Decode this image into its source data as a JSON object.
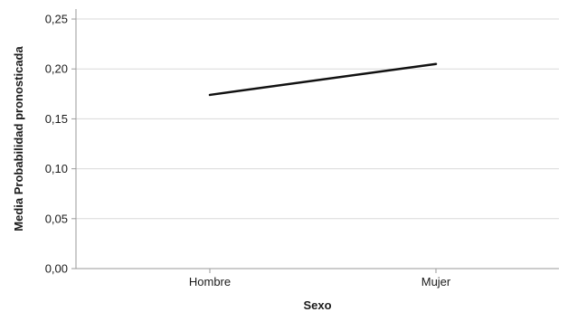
{
  "chart_data": {
    "type": "line",
    "title": "",
    "xlabel": "Sexo",
    "ylabel": "Media Probabilidad pronosticada",
    "categories": [
      "Hombre",
      "Mujer"
    ],
    "series": [
      {
        "values": [
          0.174,
          0.205
        ]
      }
    ],
    "ylim": [
      0,
      0.26
    ],
    "yticks": [
      0.0,
      0.05,
      0.1,
      0.15,
      0.2,
      0.25
    ],
    "ytick_labels": [
      "0,00",
      "0,05",
      "0,10",
      "0,15",
      "0,20",
      "0,25"
    ],
    "grid": true,
    "line_color": "#111111",
    "grid_color": "#d9d9d9"
  }
}
